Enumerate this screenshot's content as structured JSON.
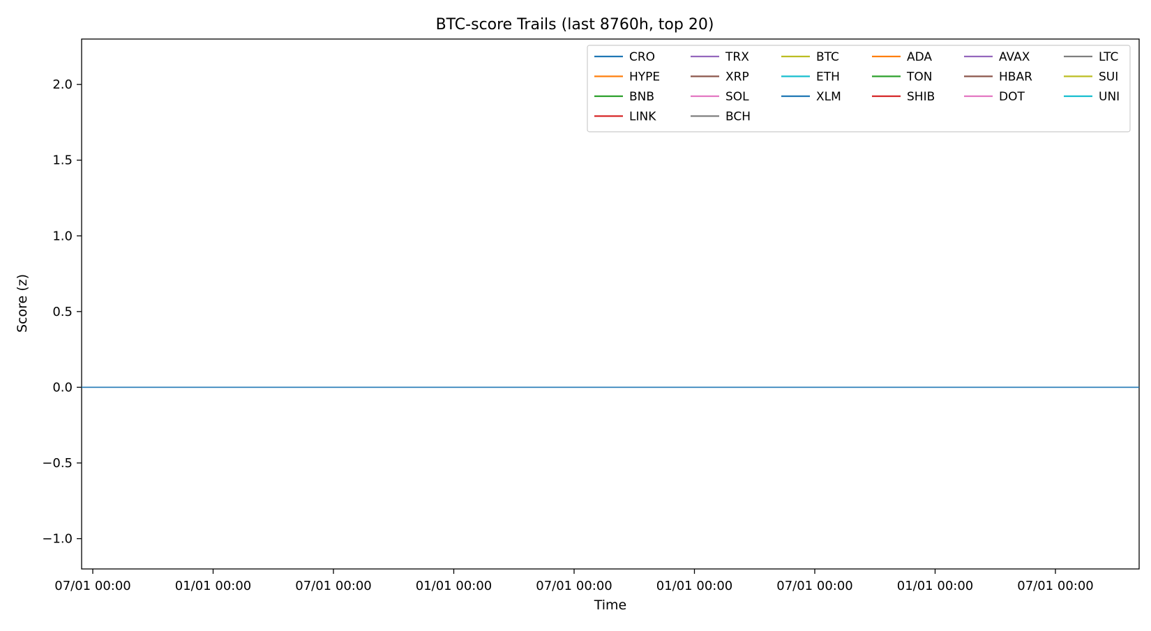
{
  "chart_data": {
    "type": "line",
    "title": "BTC-score Trails (last 8760h, top 20)",
    "xlabel": "Time",
    "ylabel": "Score (z)",
    "ylim": [
      -1.2,
      2.3
    ],
    "yticks": [
      -1.0,
      -0.5,
      0.0,
      0.5,
      1.0,
      1.5,
      2.0
    ],
    "ytick_labels": [
      "−1.0",
      "−0.5",
      "0.0",
      "0.5",
      "1.0",
      "1.5",
      "2.0"
    ],
    "xtick_labels": [
      "07/01 00:00",
      "01/01 00:00",
      "07/01 00:00",
      "01/01 00:00",
      "07/01 00:00",
      "01/01 00:00",
      "07/01 00:00",
      "01/01 00:00",
      "07/01 00:00"
    ],
    "grid": false,
    "legend_position": "top-right",
    "legend_columns": 6,
    "series": [
      {
        "name": "CRO",
        "color": "#1f77b4",
        "values": [
          0.0,
          0.0
        ]
      },
      {
        "name": "HYPE",
        "color": "#ff7f0e",
        "values": []
      },
      {
        "name": "BNB",
        "color": "#2ca02c",
        "values": []
      },
      {
        "name": "LINK",
        "color": "#d62728",
        "values": []
      },
      {
        "name": "TRX",
        "color": "#9467bd",
        "values": []
      },
      {
        "name": "XRP",
        "color": "#8c564b",
        "values": []
      },
      {
        "name": "SOL",
        "color": "#e377c2",
        "values": []
      },
      {
        "name": "BCH",
        "color": "#7f7f7f",
        "values": []
      },
      {
        "name": "BTC",
        "color": "#bcbd22",
        "values": []
      },
      {
        "name": "ETH",
        "color": "#17becf",
        "values": []
      },
      {
        "name": "XLM",
        "color": "#1f77b4",
        "values": []
      },
      {
        "name": "ADA",
        "color": "#ff7f0e",
        "values": []
      },
      {
        "name": "TON",
        "color": "#2ca02c",
        "values": []
      },
      {
        "name": "SHIB",
        "color": "#d62728",
        "values": []
      },
      {
        "name": "AVAX",
        "color": "#9467bd",
        "values": []
      },
      {
        "name": "HBAR",
        "color": "#8c564b",
        "values": []
      },
      {
        "name": "DOT",
        "color": "#e377c2",
        "values": []
      },
      {
        "name": "LTC",
        "color": "#7f7f7f",
        "values": []
      },
      {
        "name": "SUI",
        "color": "#bcbd22",
        "values": []
      },
      {
        "name": "UNI",
        "color": "#17becf",
        "values": []
      }
    ]
  }
}
